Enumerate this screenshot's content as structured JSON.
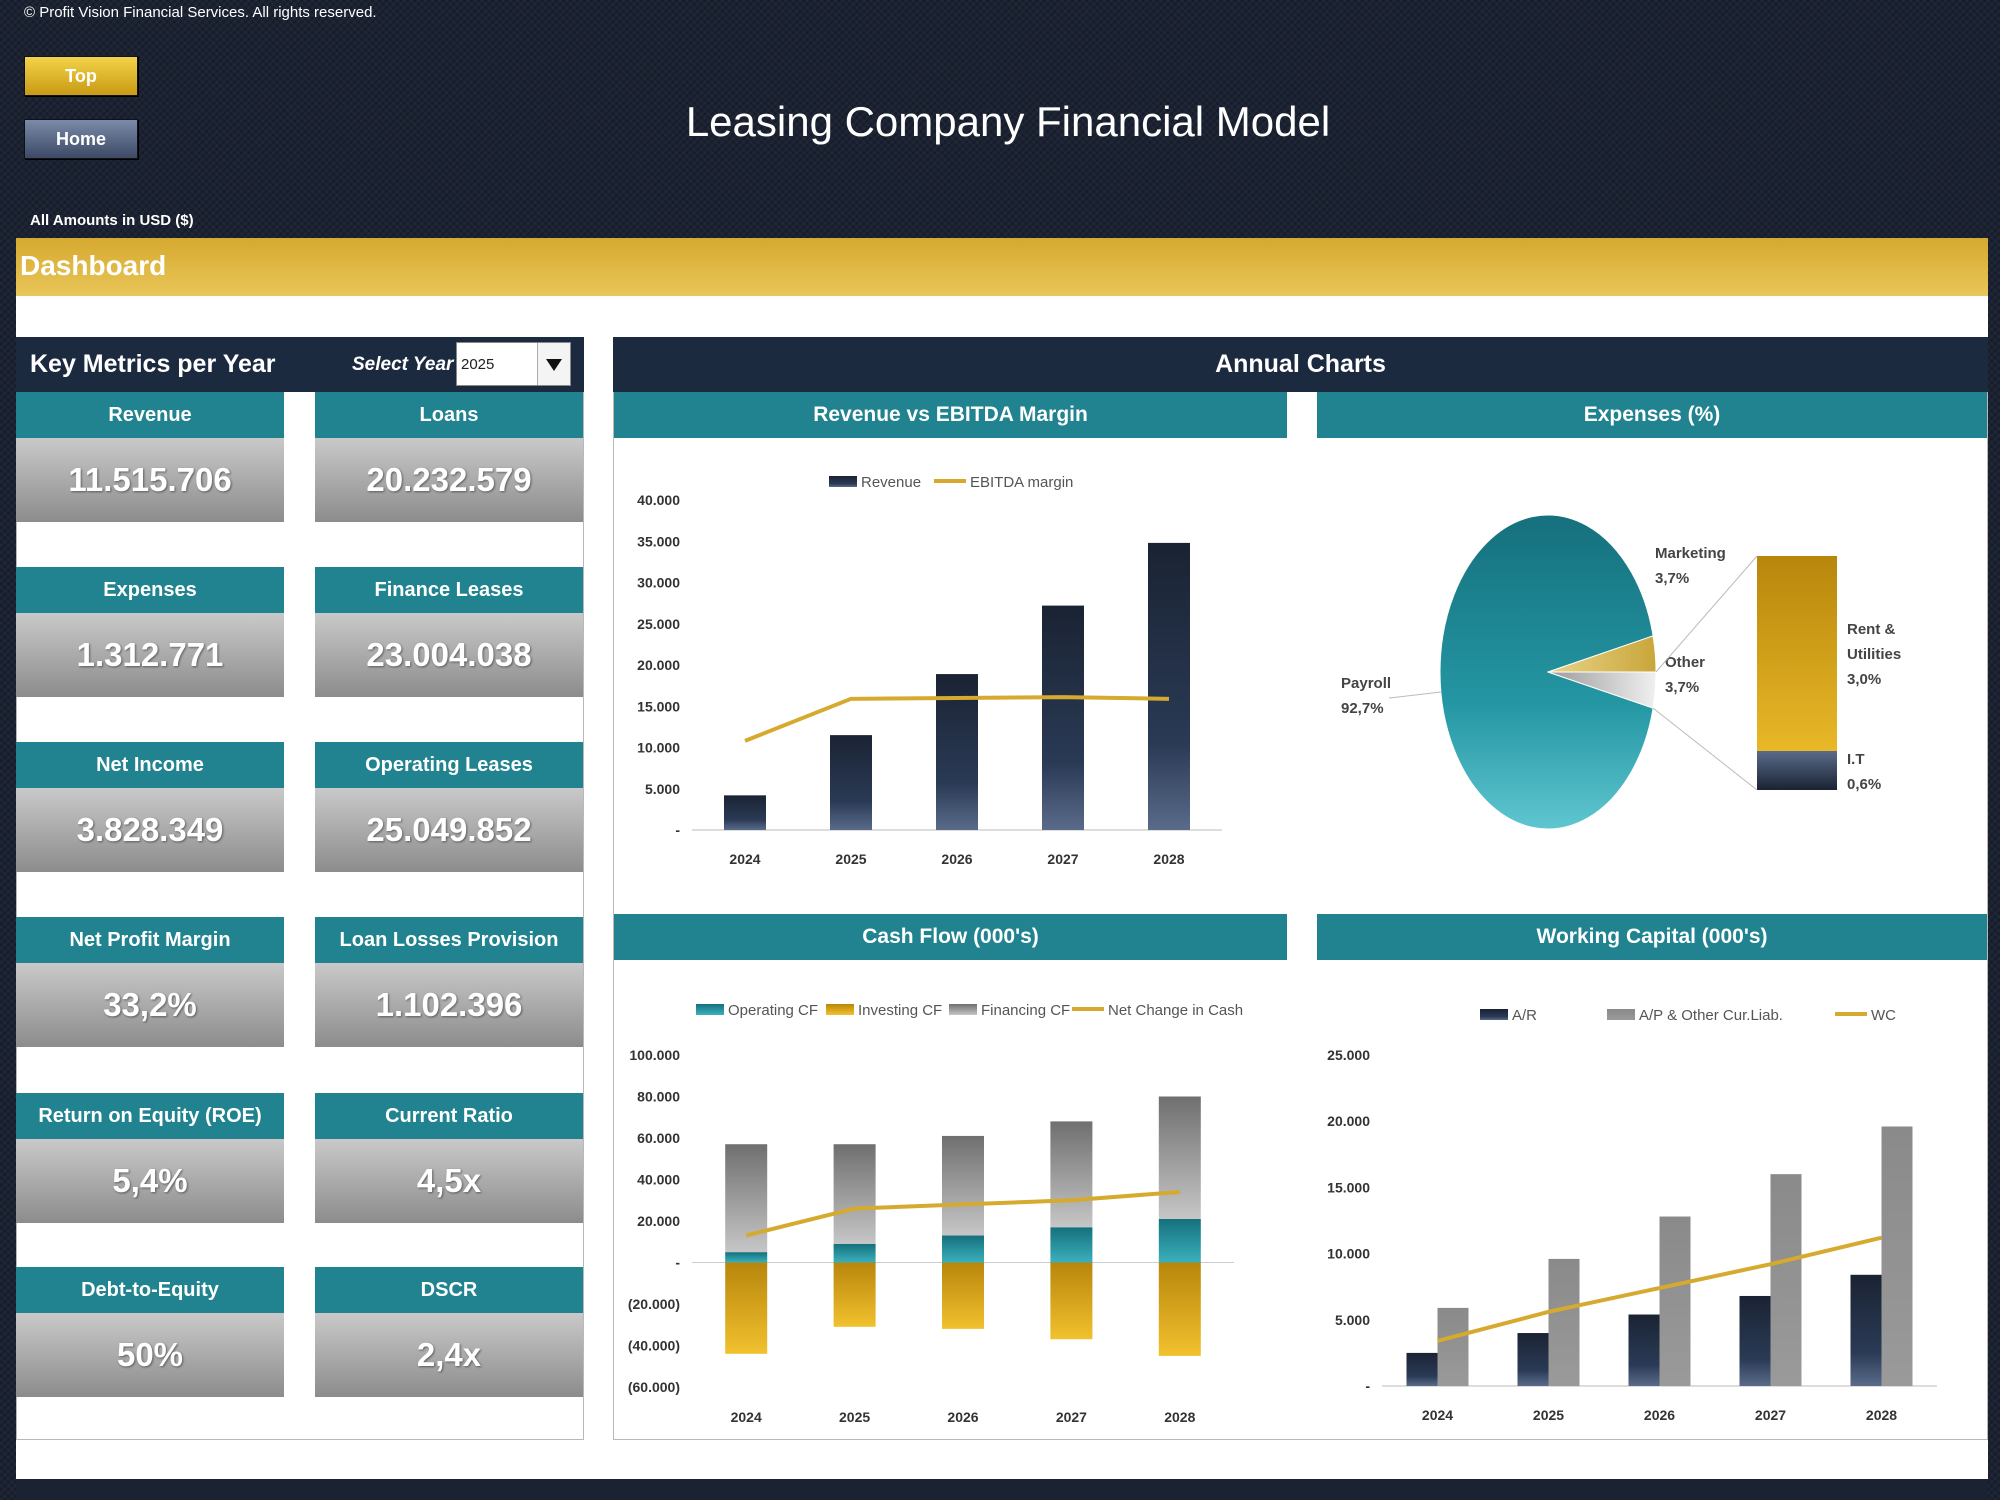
{
  "header": {
    "copyright": "© Profit Vision Financial Services. All rights reserved.",
    "top_button": "Top",
    "home_button": "Home",
    "title": "Leasing Company Financial Model",
    "amounts_note": "All Amounts in  USD ($)",
    "section": "Dashboard"
  },
  "metrics": {
    "title": "Key Metrics per Year",
    "select_label": "Select Year",
    "selected_year": "2025",
    "cards": [
      {
        "label": "Revenue",
        "value": "11.515.706"
      },
      {
        "label": "Loans",
        "value": "20.232.579"
      },
      {
        "label": "Expenses",
        "value": "1.312.771"
      },
      {
        "label": "Finance Leases",
        "value": "23.004.038"
      },
      {
        "label": "Net Income",
        "value": "3.828.349"
      },
      {
        "label": "Operating Leases",
        "value": "25.049.852"
      },
      {
        "label": "Net Profit Margin",
        "value": "33,2%"
      },
      {
        "label": "Loan Losses Provision",
        "value": "1.102.396"
      },
      {
        "label": "Return on Equity (ROE)",
        "value": "5,4%"
      },
      {
        "label": "Current Ratio",
        "value": "4,5x"
      },
      {
        "label": "Debt-to-Equity",
        "value": "50%"
      },
      {
        "label": "DSCR",
        "value": "2,4x"
      }
    ]
  },
  "charts_title": "Annual Charts",
  "colors": {
    "navy": "#1c2a40",
    "teal": "#20838f",
    "gold": "#d6a92f",
    "gray": "#8a8a8a"
  },
  "chart_data": [
    {
      "type": "bar",
      "title": "Revenue vs EBITDA Margin",
      "categories": [
        "2024",
        "2025",
        "2026",
        "2027",
        "2028"
      ],
      "yticks": [
        "-",
        "5.000",
        "10.000",
        "15.000",
        "20.000",
        "25.000",
        "30.000",
        "35.000",
        "40.000"
      ],
      "ylim": [
        0,
        40000
      ],
      "series": [
        {
          "name": "Revenue",
          "type": "bar",
          "values": [
            4200,
            11500,
            18900,
            27200,
            34800
          ]
        },
        {
          "name": "EBITDA margin",
          "type": "line",
          "values": [
            10800,
            15900,
            16000,
            16100,
            15900
          ]
        }
      ],
      "legend": "top"
    },
    {
      "type": "pie",
      "title": "Expenses (%)",
      "slices": [
        {
          "label": "Payroll",
          "value": 92.7,
          "display": "92,7%"
        },
        {
          "label": "Marketing",
          "value": 3.7,
          "display": "3,7%"
        },
        {
          "label": "Other",
          "value": 3.7,
          "display": "3,7%"
        }
      ],
      "breakdown_of": "Other",
      "breakdown": [
        {
          "label": "Rent & Utilities",
          "value": 3.0,
          "display": "3,0%"
        },
        {
          "label": "I.T",
          "value": 0.6,
          "display": "0,6%"
        }
      ]
    },
    {
      "type": "bar",
      "title": "Cash Flow (000's)",
      "categories": [
        "2024",
        "2025",
        "2026",
        "2027",
        "2028"
      ],
      "yticks": [
        "(60.000)",
        "(40.000)",
        "(20.000)",
        "-",
        "20.000",
        "40.000",
        "60.000",
        "80.000",
        "100.000"
      ],
      "ylim": [
        -60000,
        100000
      ],
      "stacked": true,
      "series": [
        {
          "name": "Operating CF",
          "type": "bar",
          "values": [
            5000,
            9000,
            13000,
            17000,
            21000
          ]
        },
        {
          "name": "Investing CF",
          "type": "bar",
          "values": [
            -44000,
            -31000,
            -32000,
            -37000,
            -45000
          ]
        },
        {
          "name": "Financing CF",
          "type": "bar",
          "values": [
            52000,
            48000,
            48000,
            51000,
            59000
          ]
        },
        {
          "name": "Net Change in Cash",
          "type": "line",
          "values": [
            13000,
            26000,
            28000,
            30000,
            34000
          ]
        }
      ],
      "legend": "top"
    },
    {
      "type": "bar",
      "title": "Working Capital (000's)",
      "categories": [
        "2024",
        "2025",
        "2026",
        "2027",
        "2028"
      ],
      "yticks": [
        "-",
        "5.000",
        "10.000",
        "15.000",
        "20.000",
        "25.000"
      ],
      "ylim": [
        0,
        25000
      ],
      "series": [
        {
          "name": "A/R",
          "type": "bar",
          "values": [
            2500,
            4000,
            5400,
            6800,
            8400
          ]
        },
        {
          "name": "A/P & Other Cur.Liab.",
          "type": "bar",
          "values": [
            5900,
            9600,
            12800,
            16000,
            19600
          ]
        },
        {
          "name": "WC",
          "type": "line",
          "values": [
            3400,
            5600,
            7400,
            9200,
            11200
          ]
        }
      ],
      "legend": "top"
    }
  ]
}
